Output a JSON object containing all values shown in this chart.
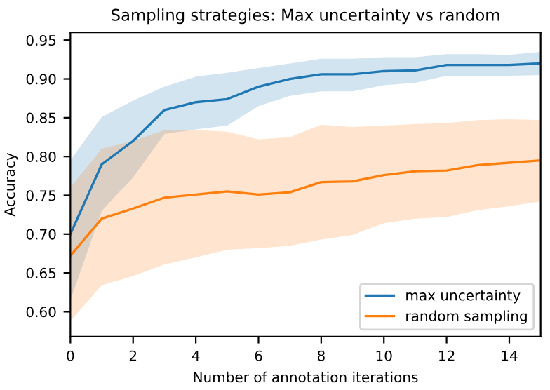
{
  "chart_data": {
    "type": "line",
    "title": "Sampling strategies: Max uncertainty vs random",
    "xlabel": "Number of annotation iterations",
    "ylabel": "Accuracy",
    "x": [
      0,
      1,
      2,
      3,
      4,
      5,
      6,
      7,
      8,
      9,
      10,
      11,
      12,
      13,
      14,
      15
    ],
    "series": [
      {
        "name": "max uncertainty",
        "color": "#1f77b4",
        "values": [
          0.7,
          0.79,
          0.82,
          0.86,
          0.87,
          0.874,
          0.89,
          0.9,
          0.906,
          0.906,
          0.91,
          0.911,
          0.918,
          0.918,
          0.918,
          0.92
        ],
        "lower": [
          0.615,
          0.73,
          0.773,
          0.829,
          0.835,
          0.84,
          0.865,
          0.878,
          0.884,
          0.884,
          0.892,
          0.895,
          0.904,
          0.904,
          0.904,
          0.905
        ],
        "upper": [
          0.795,
          0.851,
          0.872,
          0.89,
          0.903,
          0.908,
          0.914,
          0.92,
          0.926,
          0.926,
          0.928,
          0.928,
          0.932,
          0.932,
          0.931,
          0.935
        ]
      },
      {
        "name": "random sampling",
        "color": "#ff7f0e",
        "values": [
          0.672,
          0.72,
          0.733,
          0.747,
          0.751,
          0.755,
          0.751,
          0.754,
          0.767,
          0.768,
          0.776,
          0.781,
          0.782,
          0.789,
          0.792,
          0.795
        ],
        "lower": [
          0.588,
          0.634,
          0.646,
          0.661,
          0.67,
          0.68,
          0.682,
          0.685,
          0.693,
          0.699,
          0.714,
          0.72,
          0.722,
          0.731,
          0.736,
          0.742
        ],
        "upper": [
          0.76,
          0.81,
          0.82,
          0.834,
          0.834,
          0.832,
          0.822,
          0.825,
          0.841,
          0.838,
          0.84,
          0.842,
          0.843,
          0.847,
          0.848,
          0.847
        ]
      }
    ],
    "xlim": [
      0,
      15
    ],
    "xticks": [
      0,
      2,
      4,
      6,
      8,
      10,
      12,
      14
    ],
    "ylim": [
      0.568,
      0.96
    ],
    "yticks": [
      {
        "value": 0.6,
        "label": "0.60"
      },
      {
        "value": 0.65,
        "label": "0.65"
      },
      {
        "value": 0.7,
        "label": "0.70"
      },
      {
        "value": 0.75,
        "label": "0.75"
      },
      {
        "value": 0.8,
        "label": "0.80"
      },
      {
        "value": 0.85,
        "label": "0.85"
      },
      {
        "value": 0.9,
        "label": "0.90"
      },
      {
        "value": 0.95,
        "label": "0.95"
      }
    ],
    "grid": false,
    "legend": "lower right",
    "marker": "none",
    "line_style": "solid"
  }
}
